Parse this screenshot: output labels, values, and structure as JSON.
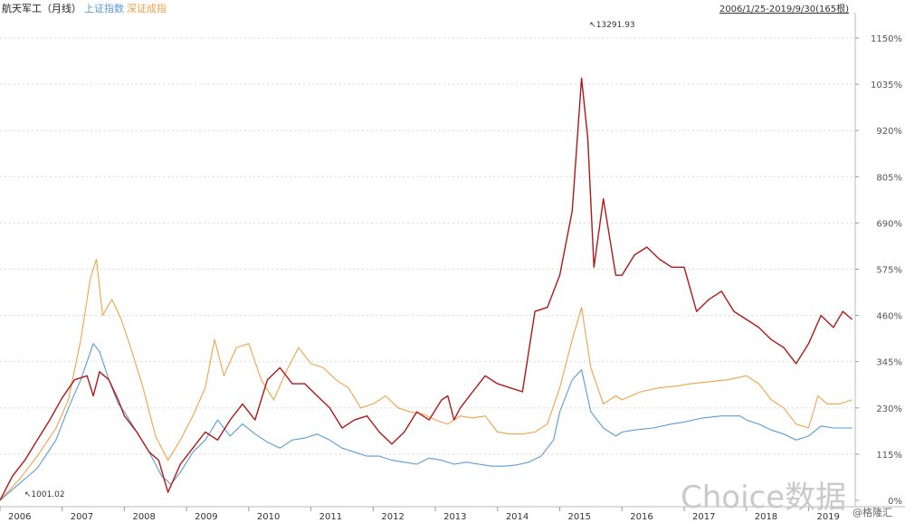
{
  "legend": {
    "title": "航天军工（月线）",
    "series_a": "上证指数",
    "series_b": "深证成指"
  },
  "range_text": "2006/1/25-2019/9/30(165根)",
  "watermark": "Choice数据",
  "watermark2": "@格隆汇",
  "colors": {
    "main": "#b01818",
    "shanghai": "#5b9bd5",
    "shenzhen": "#f0a24a",
    "grid": "#d9d9d9"
  },
  "chart_data": {
    "type": "line",
    "y_ticks": [
      "0%",
      "115%",
      "230%",
      "345%",
      "460%",
      "575%",
      "690%",
      "805%",
      "920%",
      "1035%",
      "1150%"
    ],
    "y_tick_values": [
      0,
      115,
      230,
      345,
      460,
      575,
      690,
      805,
      920,
      1035,
      1150
    ],
    "ylim": [
      0,
      1150
    ],
    "x_labels": [
      "2006",
      "2007",
      "2008",
      "2009",
      "2010",
      "2011",
      "2012",
      "2013",
      "2014",
      "2015",
      "2016",
      "2017",
      "2018",
      "2019"
    ],
    "x_label_years": [
      2006,
      2007,
      2008,
      2009,
      2010,
      2011,
      2012,
      2013,
      2014,
      2015,
      2016,
      2017,
      2018,
      2019
    ],
    "xlim": [
      2006.0,
      2019.75
    ],
    "annotations": [
      {
        "text": "13291.93",
        "x": 2015.3,
        "y": 1065
      },
      {
        "text": "1001.02",
        "x": 2006.1,
        "y": 0
      }
    ],
    "series": [
      {
        "name": "航天军工（月线）",
        "color": "#b01818",
        "x": [
          2006.0,
          2006.2,
          2006.4,
          2006.6,
          2006.8,
          2007.0,
          2007.2,
          2007.4,
          2007.5,
          2007.6,
          2007.75,
          2007.9,
          2008.0,
          2008.2,
          2008.4,
          2008.55,
          2008.7,
          2008.9,
          2009.1,
          2009.3,
          2009.5,
          2009.7,
          2009.9,
          2010.1,
          2010.3,
          2010.5,
          2010.7,
          2010.9,
          2011.1,
          2011.3,
          2011.5,
          2011.7,
          2011.9,
          2012.1,
          2012.3,
          2012.5,
          2012.7,
          2012.9,
          2013.1,
          2013.2,
          2013.3,
          2013.4,
          2013.6,
          2013.8,
          2014.0,
          2014.2,
          2014.4,
          2014.6,
          2014.8,
          2015.0,
          2015.2,
          2015.35,
          2015.45,
          2015.55,
          2015.7,
          2015.9,
          2016.0,
          2016.2,
          2016.4,
          2016.6,
          2016.8,
          2017.0,
          2017.2,
          2017.4,
          2017.6,
          2017.8,
          2018.0,
          2018.2,
          2018.4,
          2018.6,
          2018.8,
          2019.0,
          2019.2,
          2019.4,
          2019.55,
          2019.7
        ],
        "y": [
          0,
          60,
          100,
          150,
          200,
          255,
          300,
          310,
          260,
          320,
          300,
          250,
          210,
          170,
          120,
          100,
          20,
          90,
          130,
          170,
          150,
          200,
          240,
          200,
          300,
          330,
          290,
          290,
          260,
          230,
          180,
          200,
          210,
          170,
          140,
          170,
          220,
          200,
          250,
          260,
          200,
          230,
          270,
          310,
          290,
          280,
          270,
          470,
          480,
          560,
          720,
          1050,
          900,
          580,
          750,
          560,
          560,
          610,
          630,
          600,
          580,
          580,
          470,
          500,
          520,
          470,
          450,
          430,
          400,
          380,
          340,
          390,
          460,
          430,
          470,
          450
        ]
      },
      {
        "name": "上证指数",
        "color": "#5b9bd5",
        "x": [
          2006.0,
          2006.3,
          2006.6,
          2006.9,
          2007.1,
          2007.3,
          2007.5,
          2007.6,
          2007.75,
          2007.9,
          2008.0,
          2008.2,
          2008.4,
          2008.6,
          2008.75,
          2008.9,
          2009.1,
          2009.3,
          2009.5,
          2009.7,
          2009.9,
          2010.1,
          2010.3,
          2010.5,
          2010.7,
          2010.9,
          2011.1,
          2011.3,
          2011.5,
          2011.7,
          2011.9,
          2012.1,
          2012.3,
          2012.5,
          2012.7,
          2012.9,
          2013.1,
          2013.3,
          2013.5,
          2013.7,
          2013.9,
          2014.1,
          2014.3,
          2014.5,
          2014.7,
          2014.9,
          2015.0,
          2015.2,
          2015.35,
          2015.5,
          2015.7,
          2015.9,
          2016.0,
          2016.2,
          2016.5,
          2016.8,
          2017.0,
          2017.3,
          2017.6,
          2017.9,
          2018.0,
          2018.2,
          2018.4,
          2018.6,
          2018.8,
          2019.0,
          2019.2,
          2019.4,
          2019.7
        ],
        "y": [
          0,
          40,
          80,
          150,
          230,
          300,
          390,
          370,
          300,
          240,
          220,
          170,
          120,
          60,
          40,
          70,
          120,
          150,
          200,
          160,
          190,
          165,
          145,
          130,
          150,
          155,
          165,
          150,
          130,
          120,
          110,
          110,
          100,
          95,
          90,
          105,
          100,
          90,
          95,
          90,
          85,
          85,
          88,
          95,
          110,
          150,
          220,
          300,
          325,
          220,
          180,
          160,
          170,
          175,
          180,
          190,
          195,
          205,
          210,
          210,
          200,
          190,
          175,
          165,
          150,
          160,
          185,
          180,
          180
        ]
      },
      {
        "name": "深证成指",
        "color": "#f0a24a",
        "x": [
          2006.0,
          2006.3,
          2006.6,
          2006.9,
          2007.1,
          2007.3,
          2007.45,
          2007.55,
          2007.65,
          2007.8,
          2007.95,
          2008.1,
          2008.3,
          2008.5,
          2008.7,
          2008.9,
          2009.1,
          2009.3,
          2009.45,
          2009.6,
          2009.8,
          2010.0,
          2010.2,
          2010.4,
          2010.6,
          2010.8,
          2011.0,
          2011.2,
          2011.4,
          2011.6,
          2011.8,
          2012.0,
          2012.2,
          2012.4,
          2012.6,
          2012.8,
          2013.0,
          2013.2,
          2013.4,
          2013.6,
          2013.8,
          2014.0,
          2014.2,
          2014.4,
          2014.6,
          2014.8,
          2015.0,
          2015.2,
          2015.35,
          2015.5,
          2015.7,
          2015.9,
          2016.0,
          2016.3,
          2016.6,
          2016.9,
          2017.1,
          2017.4,
          2017.7,
          2018.0,
          2018.2,
          2018.4,
          2018.6,
          2018.8,
          2019.0,
          2019.15,
          2019.3,
          2019.5,
          2019.7
        ],
        "y": [
          0,
          50,
          110,
          180,
          250,
          400,
          550,
          600,
          460,
          500,
          450,
          380,
          280,
          160,
          100,
          150,
          210,
          280,
          400,
          310,
          380,
          390,
          300,
          250,
          320,
          380,
          340,
          330,
          300,
          280,
          230,
          240,
          260,
          230,
          220,
          215,
          200,
          190,
          210,
          205,
          210,
          170,
          165,
          165,
          170,
          190,
          280,
          400,
          480,
          330,
          240,
          260,
          250,
          270,
          280,
          285,
          290,
          295,
          300,
          310,
          290,
          250,
          230,
          190,
          180,
          260,
          240,
          240,
          250
        ]
      }
    ]
  }
}
